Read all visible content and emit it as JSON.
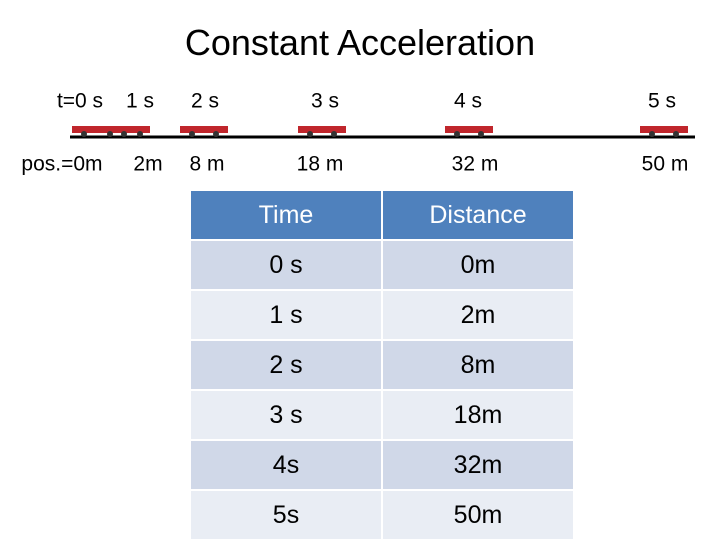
{
  "header": {
    "title": "Constant Acceleration"
  },
  "diagram": {
    "times": [
      "t=0 s",
      "1 s",
      "2 s",
      "3 s",
      "4 s",
      "5 s"
    ],
    "positions": [
      "pos.=0m",
      "2m",
      "8 m",
      "18 m",
      "32 m",
      "50 m"
    ]
  },
  "table": {
    "header": [
      "Time",
      "Distance"
    ],
    "rows": [
      [
        "0 s",
        "0m"
      ],
      [
        "1 s",
        "2m"
      ],
      [
        "2 s",
        "8m"
      ],
      [
        "3 s",
        "18m"
      ],
      [
        "4s",
        "32m"
      ],
      [
        "5s",
        "50m"
      ]
    ]
  }
}
